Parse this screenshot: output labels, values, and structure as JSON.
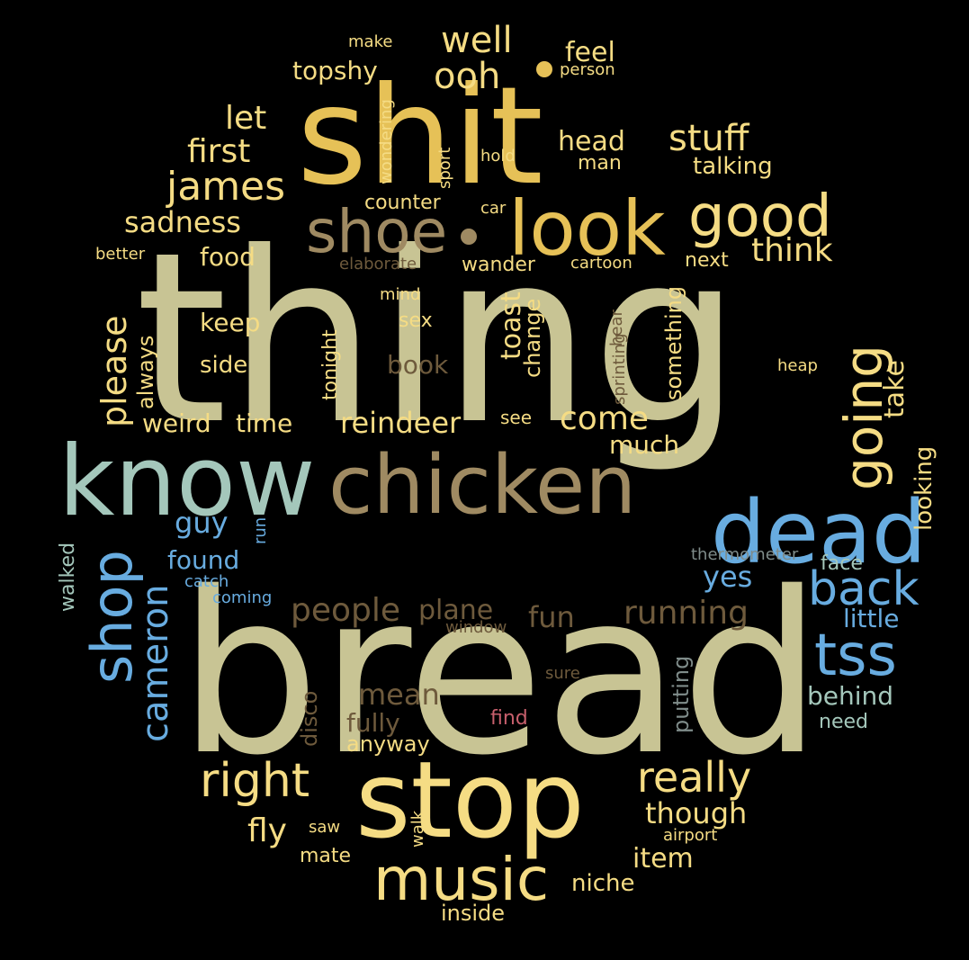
{
  "background": "#000000",
  "palette": {
    "khaki": "#c8c494",
    "gold": "#e6c157",
    "yellow": "#f5dc84",
    "tan": "#9f8a62",
    "brown": "#6e5a3c",
    "blue": "#68ace0",
    "sage": "#a4c7bb",
    "grey": "#7f8c8a",
    "rose": "#c75f6c"
  },
  "words": [
    {
      "text": "bread",
      "color": "khaki"
    },
    {
      "text": "thing",
      "color": "khaki"
    },
    {
      "text": "shit",
      "color": "gold"
    },
    {
      "text": "stop",
      "color": "yellow"
    },
    {
      "text": "know",
      "color": "sage"
    },
    {
      "text": "chicken",
      "color": "tan"
    },
    {
      "text": "dead",
      "color": "blue"
    },
    {
      "text": "look",
      "color": "gold"
    },
    {
      "text": "shoe",
      "color": "tan"
    },
    {
      "text": "music",
      "color": "yellow"
    },
    {
      "text": "good",
      "color": "yellow"
    },
    {
      "text": "going",
      "color": "yellow"
    },
    {
      "text": "shop",
      "color": "blue"
    },
    {
      "text": "tss",
      "color": "blue"
    },
    {
      "text": "back",
      "color": "blue"
    },
    {
      "text": "right",
      "color": "yellow"
    },
    {
      "text": "really",
      "color": "yellow"
    },
    {
      "text": "james",
      "color": "yellow"
    },
    {
      "text": "cameron",
      "color": "blue"
    },
    {
      "text": "well",
      "color": "yellow"
    },
    {
      "text": "ooh",
      "color": "yellow"
    },
    {
      "text": "stuff",
      "color": "yellow"
    },
    {
      "text": "please",
      "color": "yellow"
    },
    {
      "text": "people",
      "color": "brown"
    },
    {
      "text": "running",
      "color": "brown"
    },
    {
      "text": "come",
      "color": "yellow"
    },
    {
      "text": "let",
      "color": "yellow"
    },
    {
      "text": "first",
      "color": "yellow"
    },
    {
      "text": "think",
      "color": "yellow"
    },
    {
      "text": "sadness",
      "color": "yellow"
    },
    {
      "text": "reindeer",
      "color": "yellow"
    },
    {
      "text": "fun",
      "color": "brown"
    },
    {
      "text": "plane",
      "color": "brown"
    },
    {
      "text": "guy",
      "color": "blue"
    },
    {
      "text": "yes",
      "color": "blue"
    },
    {
      "text": "found",
      "color": "blue"
    },
    {
      "text": "head",
      "color": "yellow"
    },
    {
      "text": "feel",
      "color": "yellow"
    },
    {
      "text": "topshy",
      "color": "yellow"
    },
    {
      "text": "take",
      "color": "yellow"
    },
    {
      "text": "toast",
      "color": "yellow"
    },
    {
      "text": "mean",
      "color": "brown"
    },
    {
      "text": "behind",
      "color": "sage"
    },
    {
      "text": "though",
      "color": "yellow"
    },
    {
      "text": "fly",
      "color": "yellow"
    },
    {
      "text": "weird",
      "color": "yellow"
    },
    {
      "text": "time",
      "color": "yellow"
    },
    {
      "text": "book",
      "color": "brown"
    },
    {
      "text": "keep",
      "color": "yellow"
    },
    {
      "text": "side",
      "color": "yellow"
    },
    {
      "text": "food",
      "color": "yellow"
    },
    {
      "text": "much",
      "color": "yellow"
    },
    {
      "text": "talking",
      "color": "yellow"
    },
    {
      "text": "looking",
      "color": "yellow"
    },
    {
      "text": "little",
      "color": "blue"
    },
    {
      "text": "fully",
      "color": "brown"
    },
    {
      "text": "item",
      "color": "yellow"
    },
    {
      "text": "niche",
      "color": "yellow"
    },
    {
      "text": "inside",
      "color": "yellow"
    },
    {
      "text": "counter",
      "color": "yellow"
    },
    {
      "text": "wander",
      "color": "yellow"
    },
    {
      "text": "always",
      "color": "yellow"
    },
    {
      "text": "change",
      "color": "yellow"
    },
    {
      "text": "something",
      "color": "yellow"
    },
    {
      "text": "next",
      "color": "yellow"
    },
    {
      "text": "man",
      "color": "yellow"
    },
    {
      "text": "sex",
      "color": "yellow"
    },
    {
      "text": "tonight",
      "color": "yellow"
    },
    {
      "text": "see",
      "color": "yellow"
    },
    {
      "text": "anyway",
      "color": "yellow"
    },
    {
      "text": "mate",
      "color": "yellow"
    },
    {
      "text": "need",
      "color": "sage"
    },
    {
      "text": "face",
      "color": "sage"
    },
    {
      "text": "putting",
      "color": "grey"
    },
    {
      "text": "disco",
      "color": "brown"
    },
    {
      "text": "walked",
      "color": "sage"
    },
    {
      "text": "sure",
      "color": "brown"
    },
    {
      "text": "find",
      "color": "rose"
    },
    {
      "text": "window",
      "color": "brown"
    },
    {
      "text": "thermometer",
      "color": "grey"
    },
    {
      "text": "catch",
      "color": "blue"
    },
    {
      "text": "coming",
      "color": "blue"
    },
    {
      "text": "run",
      "color": "blue"
    },
    {
      "text": "hear",
      "color": "brown"
    },
    {
      "text": "sprinting",
      "color": "brown"
    },
    {
      "text": "heap",
      "color": "yellow"
    },
    {
      "text": "cartoon",
      "color": "yellow"
    },
    {
      "text": "elaborate",
      "color": "brown"
    },
    {
      "text": "mind",
      "color": "yellow"
    },
    {
      "text": "better",
      "color": "yellow"
    },
    {
      "text": "car",
      "color": "yellow"
    },
    {
      "text": "hold",
      "color": "yellow"
    },
    {
      "text": "sport",
      "color": "yellow"
    },
    {
      "text": "wondering",
      "color": "yellow"
    },
    {
      "text": "make",
      "color": "yellow"
    },
    {
      "text": "person",
      "color": "yellow"
    },
    {
      "text": "saw",
      "color": "yellow"
    },
    {
      "text": "walk",
      "color": "yellow"
    },
    {
      "text": "airport",
      "color": "yellow"
    }
  ]
}
